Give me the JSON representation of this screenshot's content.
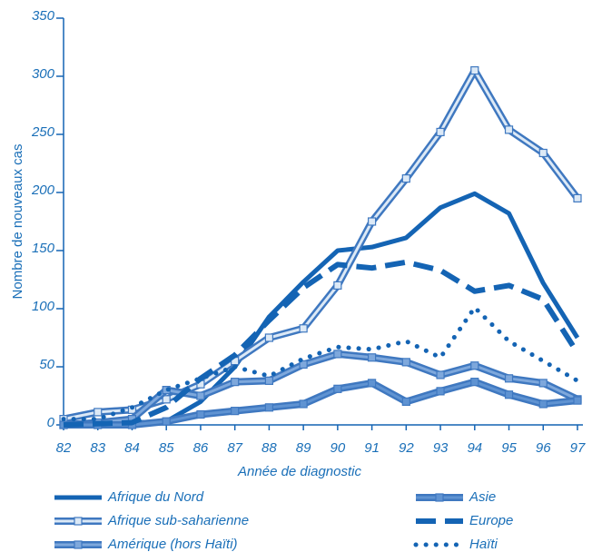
{
  "chart_data": {
    "type": "line",
    "xlabel": "Année de diagnostic",
    "ylabel": "Nombre de nouveaux cas",
    "x": [
      82,
      83,
      84,
      85,
      86,
      87,
      88,
      89,
      90,
      91,
      92,
      93,
      94,
      95,
      96,
      97
    ],
    "xlim": [
      82,
      97
    ],
    "xticks": [
      82,
      83,
      84,
      85,
      86,
      87,
      88,
      89,
      90,
      91,
      92,
      93,
      94,
      95,
      96,
      97
    ],
    "ylim": [
      0,
      350
    ],
    "yticks": [
      0,
      50,
      100,
      150,
      200,
      250,
      300,
      350
    ],
    "series": [
      {
        "name": "Afrique du Nord",
        "color": "#1464b4",
        "line_style": "solid",
        "values": [
          0,
          0,
          2,
          3,
          20,
          50,
          93,
          123,
          150,
          153,
          161,
          187,
          199,
          182,
          122,
          75
        ]
      },
      {
        "name": "Afrique sub-saharienne",
        "color": "#dce9f6",
        "line_style": "outlined-markers",
        "values": [
          5,
          11,
          13,
          22,
          35,
          55,
          75,
          83,
          120,
          175,
          212,
          252,
          305,
          254,
          234,
          195
        ]
      },
      {
        "name": "Amérique (hors Haïti)",
        "color": "#7ea8dc",
        "line_style": "outlined-markers",
        "values": [
          0,
          2,
          5,
          30,
          25,
          37,
          38,
          52,
          61,
          58,
          54,
          43,
          51,
          40,
          36,
          22
        ]
      },
      {
        "name": "Asie",
        "color": "#5f93d2",
        "line_style": "outlined-markers",
        "values": [
          0,
          0,
          0,
          3,
          9,
          12,
          15,
          18,
          31,
          36,
          20,
          29,
          37,
          26,
          18,
          21
        ]
      },
      {
        "name": "Europe",
        "color": "#1464b4",
        "line_style": "dashed",
        "values": [
          0,
          1,
          2,
          15,
          40,
          60,
          90,
          118,
          138,
          135,
          140,
          133,
          115,
          120,
          108,
          62
        ]
      },
      {
        "name": "Haïti",
        "color": "#1464b4",
        "line_style": "dotted",
        "values": [
          5,
          5,
          15,
          30,
          40,
          50,
          42,
          57,
          67,
          65,
          72,
          58,
          101,
          72,
          55,
          38
        ]
      }
    ]
  }
}
